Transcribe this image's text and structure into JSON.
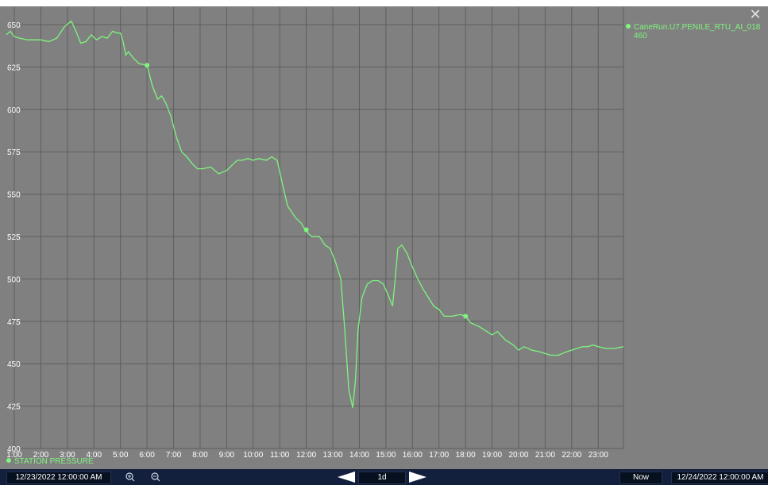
{
  "chart_data": {
    "type": "line",
    "x_tick_labels": [
      "1:00",
      "2:00",
      "3:00",
      "4:00",
      "5:00",
      "6:00",
      "7:00",
      "8:00",
      "9:00",
      "10:00",
      "11:00",
      "12:00",
      "13:00",
      "14:00",
      "15:00",
      "16:00",
      "17:00",
      "18:00",
      "19:00",
      "20:00",
      "21:00",
      "22:00",
      "23:00"
    ],
    "y_ticks": [
      400,
      425,
      450,
      475,
      500,
      525,
      550,
      575,
      600,
      625,
      650
    ],
    "xlim": [
      0.7,
      23.95
    ],
    "ylim": [
      400,
      650
    ],
    "grid": true,
    "series": [
      {
        "name": "STATION PRESSURE",
        "color": "#7ef57e",
        "x": [
          0.7,
          0.85,
          1.0,
          1.2,
          1.5,
          2.0,
          2.3,
          2.6,
          2.9,
          3.15,
          3.35,
          3.5,
          3.7,
          3.9,
          4.1,
          4.3,
          4.5,
          4.7,
          4.9,
          5.0,
          5.1,
          5.2,
          5.3,
          5.5,
          5.7,
          6.0,
          6.2,
          6.4,
          6.55,
          6.7,
          6.9,
          7.1,
          7.3,
          7.5,
          7.7,
          7.9,
          8.1,
          8.4,
          8.7,
          9.0,
          9.2,
          9.4,
          9.6,
          9.8,
          10.0,
          10.2,
          10.5,
          10.7,
          10.9,
          11.1,
          11.3,
          11.6,
          11.8,
          12.0,
          12.2,
          12.5,
          12.7,
          12.9,
          13.1,
          13.3,
          13.45,
          13.6,
          13.75,
          13.85,
          13.95,
          14.1,
          14.3,
          14.5,
          14.7,
          14.9,
          15.1,
          15.25,
          15.35,
          15.45,
          15.6,
          15.8,
          16.0,
          16.2,
          16.4,
          16.6,
          16.8,
          17.0,
          17.2,
          17.5,
          17.8,
          18.0,
          18.2,
          18.5,
          18.8,
          19.0,
          19.2,
          19.5,
          19.8,
          20.0,
          20.2,
          20.5,
          20.8,
          21.0,
          21.2,
          21.5,
          21.8,
          22.0,
          22.2,
          22.4,
          22.6,
          22.8,
          23.0,
          23.3,
          23.6,
          23.95
        ],
        "y": [
          644,
          646,
          643,
          642,
          641,
          641,
          640,
          642,
          649,
          652,
          645,
          639,
          640,
          644,
          641,
          643,
          642,
          646,
          645,
          645,
          640,
          632,
          634,
          630,
          627,
          626,
          614,
          606,
          608,
          604,
          596,
          584,
          575,
          572,
          568,
          565,
          565,
          566,
          562,
          564,
          567,
          570,
          570,
          571,
          570,
          571,
          570,
          572,
          570,
          556,
          543,
          536,
          533,
          528,
          525,
          525,
          520,
          518,
          510,
          500,
          470,
          435,
          424,
          440,
          470,
          489,
          497,
          499,
          499,
          497,
          490,
          484,
          500,
          518,
          520,
          515,
          507,
          500,
          494,
          489,
          484,
          482,
          478,
          478,
          479,
          478,
          474,
          472,
          469,
          467,
          469,
          464,
          461,
          458,
          460,
          458,
          457,
          456,
          455,
          455,
          457,
          458,
          459,
          460,
          460,
          461,
          460,
          459,
          459,
          460
        ],
        "markers": [
          [
            6.0,
            626
          ],
          [
            12.0,
            529
          ],
          [
            18.0,
            478
          ]
        ]
      }
    ],
    "legend_right": {
      "name": "CaneRun.U7.PENILE_RTU_AI_018",
      "value": "460"
    },
    "legend_bottom": "STATION PRESSURE"
  },
  "controls": {
    "start_datetime": "12/23/2022 12:00:00 AM",
    "end_datetime": "12/24/2022 12:00:00 AM",
    "range_label": "1d",
    "now_label": "Now",
    "zoom_in_icon": "zoom-in-icon",
    "zoom_out_icon": "zoom-out-icon",
    "close_icon": "close-icon"
  },
  "colors": {
    "background": "#808080",
    "grid": "#5e5e5e",
    "trend": "#7ef57e",
    "bottom_bar": "#12203d"
  }
}
